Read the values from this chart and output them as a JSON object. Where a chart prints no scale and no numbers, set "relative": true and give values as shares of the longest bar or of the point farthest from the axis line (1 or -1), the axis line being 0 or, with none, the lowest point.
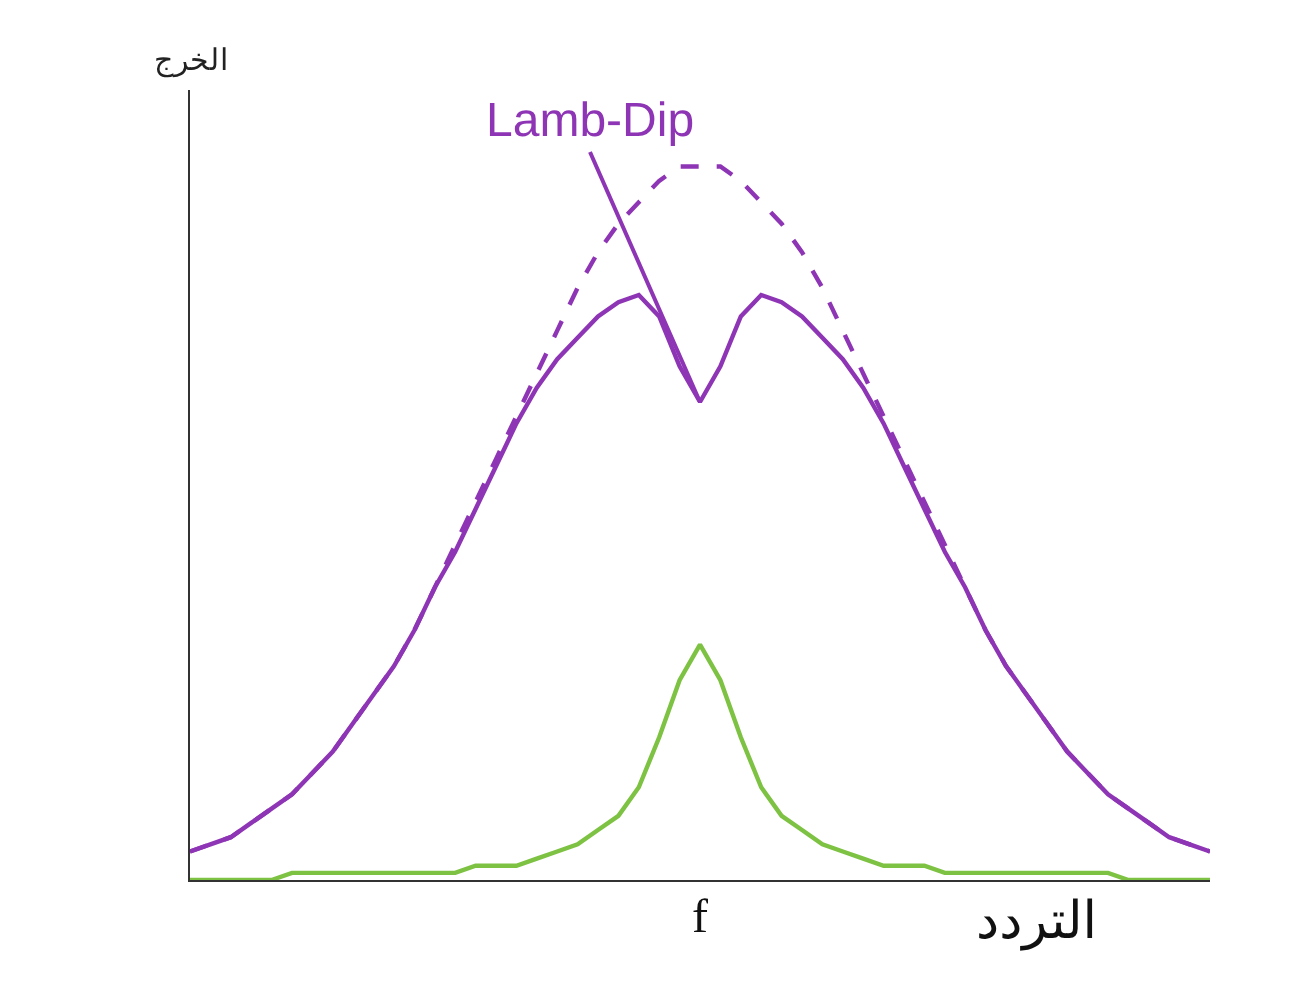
{
  "chart_data": {
    "type": "line",
    "relative": true,
    "xlabel": "التردد",
    "ylabel": "الخرج",
    "categories": [
      null,
      null,
      null,
      null,
      null,
      null,
      null,
      null,
      null,
      null,
      null,
      null,
      null,
      null,
      null,
      null,
      null,
      null,
      null,
      null,
      null,
      null,
      null,
      null,
      null,
      null,
      null,
      null,
      null,
      null,
      null,
      null,
      null,
      null,
      null,
      null,
      null,
      null,
      null,
      null,
      null,
      null,
      null,
      null,
      null,
      null,
      null,
      null,
      null,
      null,
      null
    ],
    "series": [
      {
        "color": "#8e35b5",
        "line_style": "solid",
        "values": [
          0.04,
          0.05,
          0.06,
          0.08,
          0.1,
          0.12,
          0.15,
          0.18,
          0.22,
          0.26,
          0.3,
          0.35,
          0.41,
          0.46,
          0.52,
          0.58,
          0.64,
          0.69,
          0.73,
          0.76,
          0.79,
          0.81,
          0.82,
          0.79,
          0.72,
          0.67,
          0.72,
          0.79,
          0.82,
          0.81,
          0.79,
          0.76,
          0.73,
          0.69,
          0.64,
          0.58,
          0.52,
          0.46,
          0.41,
          0.35,
          0.3,
          0.26,
          0.22,
          0.18,
          0.15,
          0.12,
          0.1,
          0.08,
          0.06,
          0.05,
          0.04
        ]
      },
      {
        "color": "#8e35b5",
        "line_style": "dashed",
        "values": [
          0.04,
          0.05,
          0.06,
          0.08,
          0.1,
          0.12,
          0.15,
          0.18,
          0.22,
          0.26,
          0.3,
          0.35,
          0.41,
          0.47,
          0.53,
          0.59,
          0.65,
          0.71,
          0.77,
          0.83,
          0.88,
          0.92,
          0.95,
          0.98,
          1.0,
          1.0,
          1.0,
          0.98,
          0.95,
          0.92,
          0.88,
          0.83,
          0.77,
          0.71,
          0.65,
          0.59,
          0.53,
          0.47,
          0.41,
          0.35,
          0.3,
          0.26,
          0.22,
          0.18,
          0.15,
          0.12,
          0.1,
          0.08,
          0.06,
          0.05,
          0.04
        ]
      },
      {
        "color": "#7dc242",
        "line_style": "solid",
        "values": [
          0.0,
          0.0,
          0.0,
          0.0,
          0.0,
          0.01,
          0.01,
          0.01,
          0.01,
          0.01,
          0.01,
          0.01,
          0.01,
          0.01,
          0.02,
          0.02,
          0.02,
          0.03,
          0.04,
          0.05,
          0.07,
          0.09,
          0.13,
          0.2,
          0.28,
          0.33,
          0.28,
          0.2,
          0.13,
          0.09,
          0.07,
          0.05,
          0.04,
          0.03,
          0.02,
          0.02,
          0.02,
          0.01,
          0.01,
          0.01,
          0.01,
          0.01,
          0.01,
          0.01,
          0.01,
          0.01,
          0.0,
          0.0,
          0.0,
          0.0,
          0.0
        ]
      }
    ],
    "annotations": [
      "Lamb-Dip",
      "f"
    ],
    "grid": false
  }
}
